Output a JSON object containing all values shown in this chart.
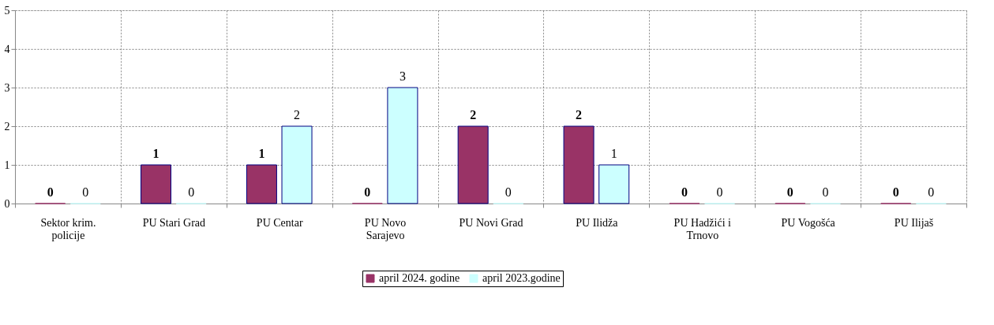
{
  "chart_data": {
    "type": "bar",
    "categories": [
      "Sektor krim. policije",
      "PU Stari Grad",
      "PU Centar",
      "PU Novo Sarajevo",
      "PU Novi Grad",
      "PU Ilidža",
      "PU Hadžići i Trnovo",
      "PU Vogošća",
      "PU Ilijaš"
    ],
    "series": [
      {
        "name": "april 2024. godine",
        "color": "#993366",
        "values": [
          0,
          1,
          1,
          0,
          2,
          2,
          0,
          0,
          0
        ]
      },
      {
        "name": "april 2023.godine",
        "color": "#ccffff",
        "values": [
          0,
          0,
          2,
          3,
          0,
          1,
          0,
          0,
          0
        ]
      }
    ],
    "ylim": [
      0,
      5
    ],
    "yticks": [
      0,
      1,
      2,
      3,
      4,
      5
    ],
    "grid": true,
    "legend": "bottom",
    "data_labels": true
  }
}
